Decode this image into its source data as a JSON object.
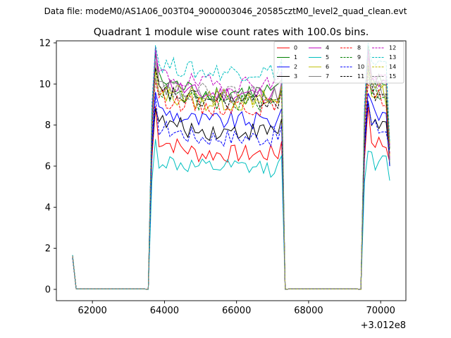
{
  "figure": {
    "suptitle": "Data file: modeM0/AS1A06_003T04_9000003046_20585cztM0_level2_quad_clean.evt",
    "title": "Quadrant 1 module wise count rates with 100.0s bins.",
    "x_offset_label": "+3.012e8"
  },
  "chart_data": {
    "type": "line",
    "title": "Quadrant 1 module wise count rates with 100.0s bins.",
    "xlabel": "",
    "ylabel": "",
    "x_offset": 301200000,
    "xlim": [
      61000,
      70700
    ],
    "ylim": [
      -0.55,
      12.1
    ],
    "xticks": [
      62000,
      64000,
      66000,
      68000,
      70000
    ],
    "xtick_labels": [
      "62000",
      "64000",
      "66000",
      "68000",
      "70000"
    ],
    "yticks": [
      0,
      2,
      4,
      6,
      8,
      10,
      12
    ],
    "ytick_labels": [
      "0",
      "2",
      "4",
      "6",
      "8",
      "10",
      "12"
    ],
    "grid": false,
    "legend_position": "top-right",
    "legend_columns": 4,
    "segments": [
      {
        "start": 61450,
        "end": 61550,
        "level": "ramp"
      },
      {
        "start": 61550,
        "end": 63550,
        "level": "zero"
      },
      {
        "start": 63550,
        "end": 63750,
        "level": "rise"
      },
      {
        "start": 63750,
        "end": 67250,
        "level": "on"
      },
      {
        "start": 67250,
        "end": 67450,
        "level": "fall"
      },
      {
        "start": 67450,
        "end": 69450,
        "level": "zero"
      },
      {
        "start": 69450,
        "end": 69650,
        "level": "rise"
      },
      {
        "start": 69650,
        "end": 70250,
        "level": "on"
      }
    ],
    "series": [
      {
        "name": "0",
        "color": "#ff0000",
        "dash": "solid",
        "start": 1.6,
        "peak": 8.1,
        "mean": 6.6,
        "end": 6.2
      },
      {
        "name": "1",
        "color": "#008000",
        "dash": "solid",
        "start": 1.65,
        "peak": 10.9,
        "mean": 9.6,
        "end": 6.0
      },
      {
        "name": "2",
        "color": "#0000ff",
        "dash": "solid",
        "start": 1.55,
        "peak": 9.3,
        "mean": 8.2,
        "end": 6.0
      },
      {
        "name": "3",
        "color": "#000000",
        "dash": "solid",
        "start": 1.6,
        "peak": 8.7,
        "mean": 7.7,
        "end": 6.3
      },
      {
        "name": "4",
        "color": "#bf00bf",
        "dash": "solid",
        "start": 1.62,
        "peak": 10.8,
        "mean": 9.5,
        "end": 6.4
      },
      {
        "name": "5",
        "color": "#00bfbf",
        "dash": "solid",
        "start": 1.58,
        "peak": 6.7,
        "mean": 5.9,
        "end": 5.3
      },
      {
        "name": "6",
        "color": "#bfbf00",
        "dash": "solid",
        "start": 1.62,
        "peak": 10.2,
        "mean": 9.1,
        "end": 6.5
      },
      {
        "name": "7",
        "color": "#808080",
        "dash": "solid",
        "start": 1.6,
        "peak": 10.6,
        "mean": 9.4,
        "end": 6.2
      },
      {
        "name": "8",
        "color": "#ff0000",
        "dash": "dashed",
        "start": 1.62,
        "peak": 9.9,
        "mean": 8.9,
        "end": 6.6
      },
      {
        "name": "9",
        "color": "#008000",
        "dash": "dashed",
        "start": 1.64,
        "peak": 10.4,
        "mean": 9.1,
        "end": 6.8
      },
      {
        "name": "10",
        "color": "#0000ff",
        "dash": "dashed",
        "start": 1.55,
        "peak": 8.5,
        "mean": 7.4,
        "end": 6.7
      },
      {
        "name": "11",
        "color": "#000000",
        "dash": "dashed",
        "start": 1.6,
        "peak": 10.1,
        "mean": 9.2,
        "end": 6.9
      },
      {
        "name": "12",
        "color": "#bf00bf",
        "dash": "dashed",
        "start": 1.66,
        "peak": 11.0,
        "mean": 10.0,
        "end": 7.0
      },
      {
        "name": "13",
        "color": "#00bfbf",
        "dash": "dashed",
        "start": 1.68,
        "peak": 11.5,
        "mean": 10.6,
        "end": 7.2
      },
      {
        "name": "14",
        "color": "#bfbf00",
        "dash": "dashed",
        "start": 1.63,
        "peak": 10.3,
        "mean": 9.3,
        "end": 7.1
      },
      {
        "name": "15",
        "color": "#808080",
        "dash": "dashed",
        "start": 1.62,
        "peak": 10.3,
        "mean": 9.6,
        "end": 6.9
      }
    ]
  }
}
